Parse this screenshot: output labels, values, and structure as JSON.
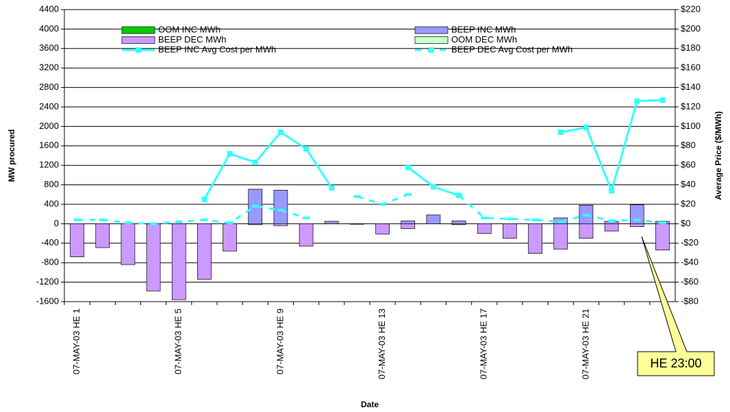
{
  "chart_data": {
    "type": "bar",
    "y_title": "MW procured",
    "y2_title": "Average Price ($/MWh)",
    "x_title": "Date",
    "annotation": "HE 23:00",
    "categories": [
      "07-MAY-03 HE 1",
      null,
      null,
      null,
      "07-MAY-03 HE 5",
      null,
      null,
      null,
      "07-MAY-03 HE 9",
      null,
      null,
      null,
      "07-MAY-03 HE 13",
      null,
      null,
      null,
      "07-MAY-03 HE 17",
      null,
      null,
      null,
      "07-MAY-03 HE 21",
      null,
      null,
      null
    ],
    "ylim": [
      -1600,
      4400
    ],
    "yticks": [
      -1600,
      -1200,
      -800,
      -400,
      0,
      400,
      800,
      1200,
      1600,
      2000,
      2400,
      2800,
      3200,
      3600,
      4000,
      4400
    ],
    "y2lim": [
      -80,
      220
    ],
    "y2ticks": [
      {
        "value": -80,
        "label": "-$80"
      },
      {
        "value": -60,
        "label": "-$60"
      },
      {
        "value": -40,
        "label": "-$40"
      },
      {
        "value": -20,
        "label": "-$20"
      },
      {
        "value": 0,
        "label": "$0"
      },
      {
        "value": 20,
        "label": "$20"
      },
      {
        "value": 40,
        "label": "$40"
      },
      {
        "value": 60,
        "label": "$60"
      },
      {
        "value": 80,
        "label": "$80"
      },
      {
        "value": 100,
        "label": "$100"
      },
      {
        "value": 120,
        "label": "$120"
      },
      {
        "value": 140,
        "label": "$140"
      },
      {
        "value": 160,
        "label": "$160"
      },
      {
        "value": 180,
        "label": "$180"
      },
      {
        "value": 200,
        "label": "$200"
      },
      {
        "value": 220,
        "label": "$220"
      }
    ],
    "grid": true,
    "series": [
      {
        "name": "OOM INC MWh",
        "kind": "bar",
        "color": "#00cc00",
        "values": [
          0,
          0,
          0,
          0,
          0,
          0,
          0,
          0,
          0,
          0,
          0,
          0,
          0,
          0,
          0,
          0,
          0,
          0,
          0,
          0,
          0,
          0,
          0,
          0
        ]
      },
      {
        "name": "BEEP INC MWh",
        "kind": "bar",
        "color": "#9999ff",
        "values": [
          0,
          0,
          0,
          0,
          0,
          0,
          0,
          710,
          690,
          0,
          50,
          0,
          0,
          60,
          180,
          60,
          0,
          0,
          0,
          120,
          380,
          50,
          390,
          50
        ]
      },
      {
        "name": "BEEP DEC MWh",
        "kind": "bar",
        "color": "#cc99ff",
        "values": [
          -680,
          -490,
          -840,
          -1380,
          -1560,
          -1140,
          -560,
          -20,
          -40,
          -460,
          0,
          -10,
          -210,
          -100,
          0,
          -20,
          -200,
          -300,
          -610,
          -520,
          -300,
          -150,
          -60,
          -540
        ]
      },
      {
        "name": "OOM DEC MWh",
        "kind": "bar",
        "color": "#ccffcc",
        "values": [
          0,
          0,
          0,
          0,
          0,
          0,
          0,
          0,
          0,
          0,
          0,
          0,
          0,
          0,
          0,
          0,
          0,
          0,
          0,
          0,
          0,
          0,
          0,
          0
        ]
      },
      {
        "name": "BEEP INC Avg Cost per MWh",
        "kind": "line",
        "axis": "y2",
        "color": "#33ffff",
        "dashed": false,
        "values": [
          null,
          null,
          null,
          null,
          null,
          25,
          72,
          63,
          94,
          77,
          37,
          null,
          null,
          58,
          38,
          29,
          null,
          null,
          null,
          94,
          99,
          34,
          126,
          127
        ]
      },
      {
        "name": "BEEP DEC Avg Cost per MWh",
        "kind": "line",
        "axis": "y2",
        "color": "#33ffff",
        "dashed": true,
        "values": [
          4,
          4,
          1,
          0,
          2,
          4,
          1,
          18,
          14,
          6,
          null,
          28,
          20,
          30,
          null,
          29,
          6,
          5,
          4,
          2,
          9,
          3,
          4,
          1
        ]
      }
    ]
  }
}
